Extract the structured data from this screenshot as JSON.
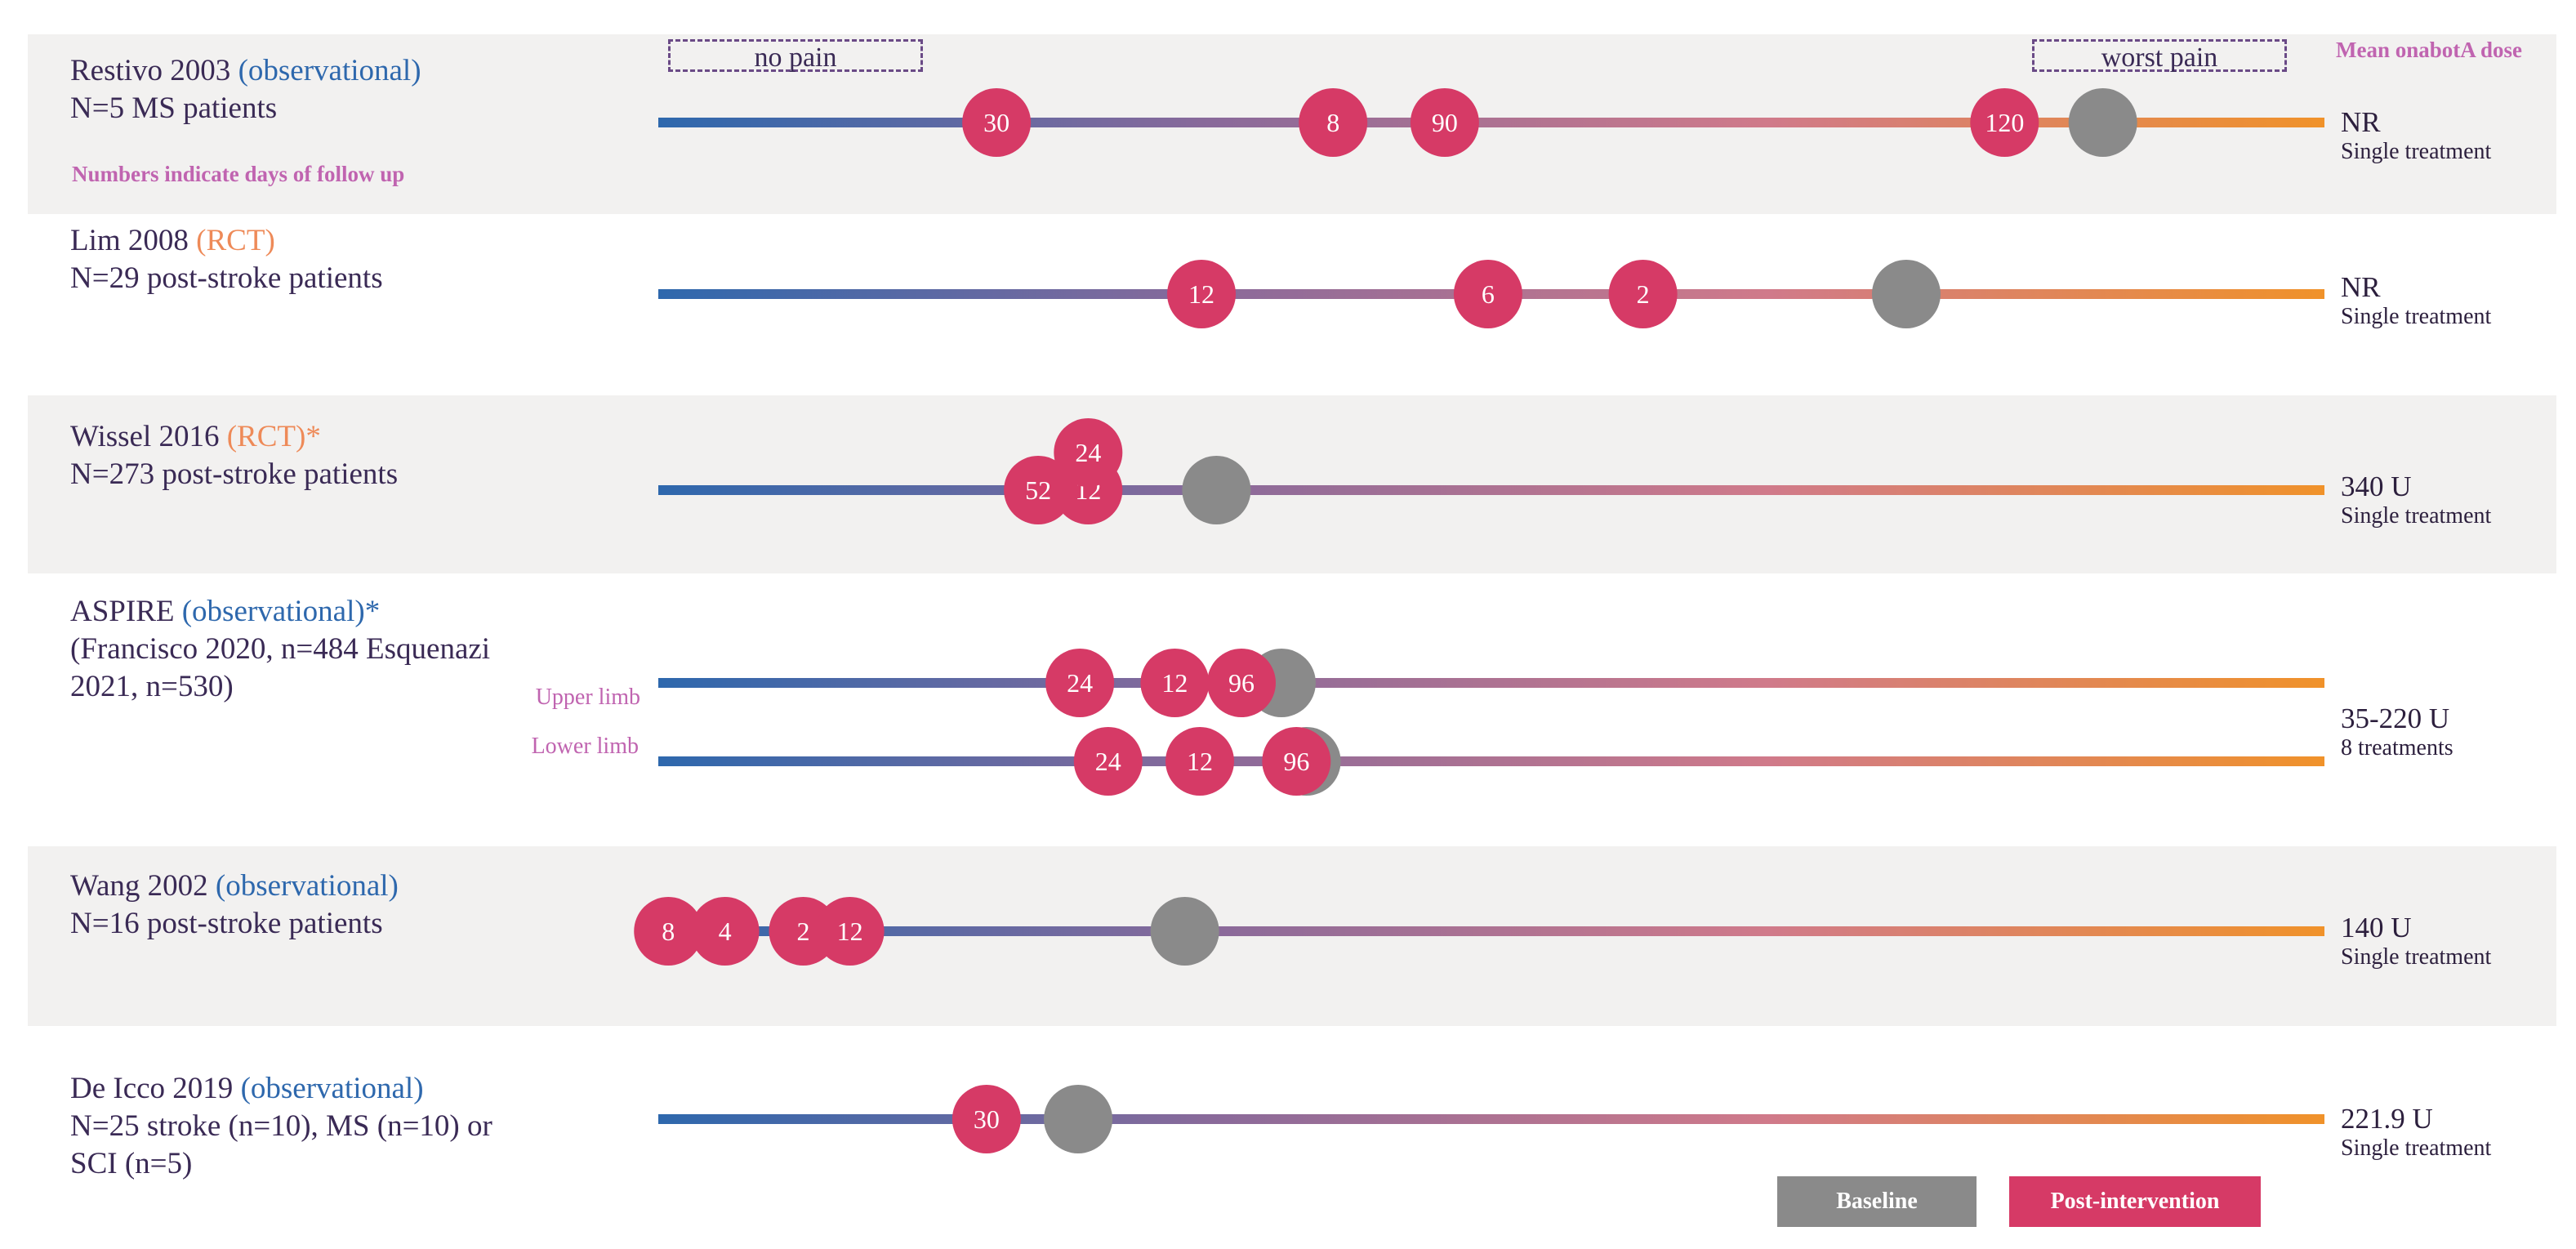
{
  "chart_data": {
    "type": "scatter",
    "x_axis": {
      "left_label": "no pain",
      "right_label": "worst pain",
      "gradient": [
        "#2e68ad",
        "#8a6a9a",
        "#d07a8a",
        "#f0922a"
      ]
    },
    "dose_header": "Mean onabotA dose",
    "note": "Numbers indicate days of follow up",
    "colors": {
      "baseline": "#8a8a8a",
      "post": "#d63a66",
      "band": "#f2f1f0"
    },
    "legend": [
      {
        "label": "Baseline",
        "color": "#8a8a8a"
      },
      {
        "label": "Post-intervention",
        "color": "#d63a66"
      }
    ],
    "studies": [
      {
        "name": "Restivo 2003",
        "design": "(observational)",
        "design_kind": "observational",
        "star": "",
        "lines": [
          "N=5 MS patients"
        ],
        "dose": "NR",
        "treatment": "Single treatment",
        "rows": [
          {
            "limb": "",
            "baseline": 0.867,
            "points": [
              {
                "label": "30",
                "x": 0.203
              },
              {
                "label": "8",
                "x": 0.405
              },
              {
                "label": "90",
                "x": 0.472
              },
              {
                "label": "120",
                "x": 0.808
              }
            ]
          }
        ]
      },
      {
        "name": "Lim 2008",
        "design": "(RCT)",
        "design_kind": "rct",
        "star": "",
        "lines": [
          "N=29 post-stroke patients"
        ],
        "dose": "NR",
        "treatment": "Single treatment",
        "rows": [
          {
            "limb": "",
            "baseline": 0.749,
            "points": [
              {
                "label": "12",
                "x": 0.326
              },
              {
                "label": "6",
                "x": 0.498
              },
              {
                "label": "2",
                "x": 0.591
              }
            ]
          }
        ]
      },
      {
        "name": "Wissel 2016",
        "design": "(RCT)",
        "design_kind": "rct",
        "star": "*",
        "lines": [
          "N=273 post-stroke patients"
        ],
        "dose": "340 U",
        "treatment": "Single treatment",
        "rows": [
          {
            "limb": "",
            "baseline": 0.335,
            "points": [
              {
                "label": "52",
                "x": 0.228
              },
              {
                "label": "12",
                "x": 0.258
              },
              {
                "label": "24",
                "x": 0.258,
                "dy": -1
              }
            ]
          }
        ]
      },
      {
        "name": "ASPIRE",
        "design": "(observational)",
        "design_kind": "observational",
        "star": "*",
        "lines": [
          "(Francisco 2020, n=484 Esquenazi",
          "2021, n=530)"
        ],
        "dose": "35-220 U",
        "treatment": "8 treatments",
        "rows": [
          {
            "limb": "Upper limb",
            "baseline": 0.374,
            "points": [
              {
                "label": "24",
                "x": 0.253
              },
              {
                "label": "12",
                "x": 0.31
              },
              {
                "label": "96",
                "x": 0.35
              }
            ]
          },
          {
            "limb": "Lower limb",
            "baseline": 0.389,
            "points": [
              {
                "label": "24",
                "x": 0.27
              },
              {
                "label": "12",
                "x": 0.325
              },
              {
                "label": "96",
                "x": 0.383
              }
            ]
          }
        ]
      },
      {
        "name": "Wang 2002",
        "design": "(observational)",
        "design_kind": "observational",
        "star": "",
        "lines": [
          "N=16 post-stroke patients"
        ],
        "dose": "140 U",
        "treatment": "Single treatment",
        "rows": [
          {
            "limb": "",
            "baseline": 0.316,
            "points": [
              {
                "label": "8",
                "x": 0.006
              },
              {
                "label": "4",
                "x": 0.04
              },
              {
                "label": "2",
                "x": 0.087
              },
              {
                "label": "12",
                "x": 0.115
              }
            ]
          }
        ]
      },
      {
        "name": "De Icco 2019",
        "design": "(observational)",
        "design_kind": "observational",
        "star": "",
        "lines": [
          "N=25 stroke (n=10), MS (n=10) or",
          "SCI (n=5)"
        ],
        "dose": "221.9 U",
        "treatment": "Single treatment",
        "rows": [
          {
            "limb": "",
            "baseline": 0.252,
            "points": [
              {
                "label": "30",
                "x": 0.197
              }
            ]
          }
        ]
      }
    ]
  }
}
